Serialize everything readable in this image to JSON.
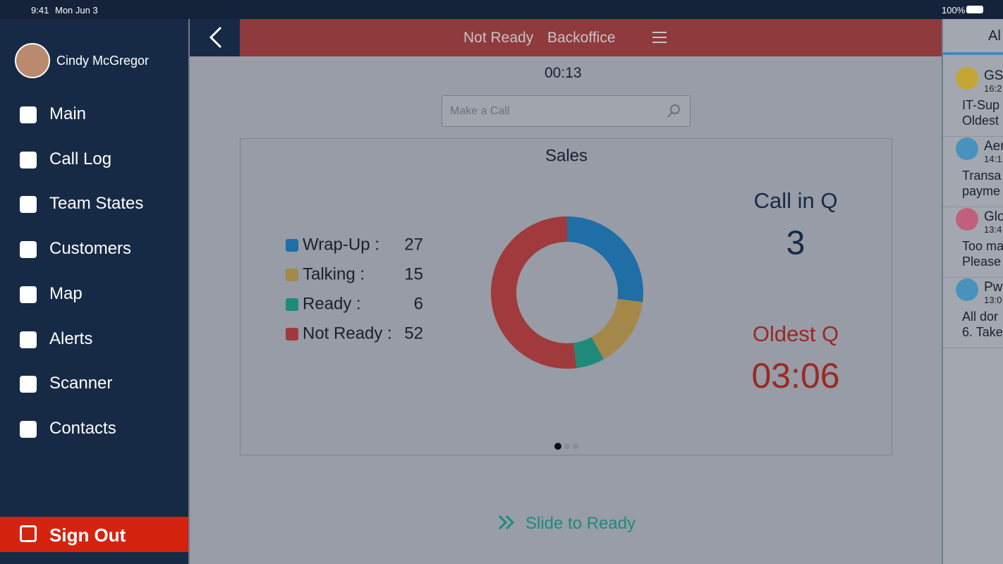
{
  "status_bar": {
    "time": "9:41",
    "date": "Mon Jun 3",
    "battery": "100%"
  },
  "sidebar": {
    "user": "Cindy McGregor",
    "menu": [
      "Main",
      "Call Log",
      "Team States",
      "Customers",
      "Map",
      "Alerts",
      "Scanner",
      "Contacts"
    ],
    "sign_out": "Sign Out"
  },
  "header": {
    "status": "Not Ready",
    "reason": "Backoffice"
  },
  "timer": "00:13",
  "search_placeholder": "Make a Call",
  "chart_data": {
    "type": "donut",
    "title": "Sales",
    "categories": [
      "Wrap-Up :",
      "Talking :",
      "Ready :",
      "Not Ready :"
    ],
    "values": [
      27,
      15,
      6,
      52
    ],
    "colors": [
      "#1f6ea6",
      "#a4884a",
      "#1f8a7a",
      "#a03a3d"
    ]
  },
  "queue": {
    "calls_label": "Call in Q",
    "calls": 3,
    "oldest_label": "Oldest Q",
    "oldest": "03:06"
  },
  "slide": "Slide to Ready",
  "right_panel": {
    "tab": "Al",
    "alerts": [
      {
        "name": "GS",
        "time": "16:2",
        "lines": [
          "IT-Sup",
          "Oldest"
        ],
        "color": "#c4a535"
      },
      {
        "name": "Aer",
        "time": "14:1",
        "lines": [
          "Transa",
          "payme"
        ],
        "color": "#4a92bd"
      },
      {
        "name": "Glo",
        "time": "13:4",
        "lines": [
          "Too ma",
          "Please"
        ],
        "color": "#c0607c"
      },
      {
        "name": "Pw",
        "time": "13:0",
        "lines": [
          "All dor",
          "6. Take"
        ],
        "color": "#4a92bd"
      }
    ]
  }
}
